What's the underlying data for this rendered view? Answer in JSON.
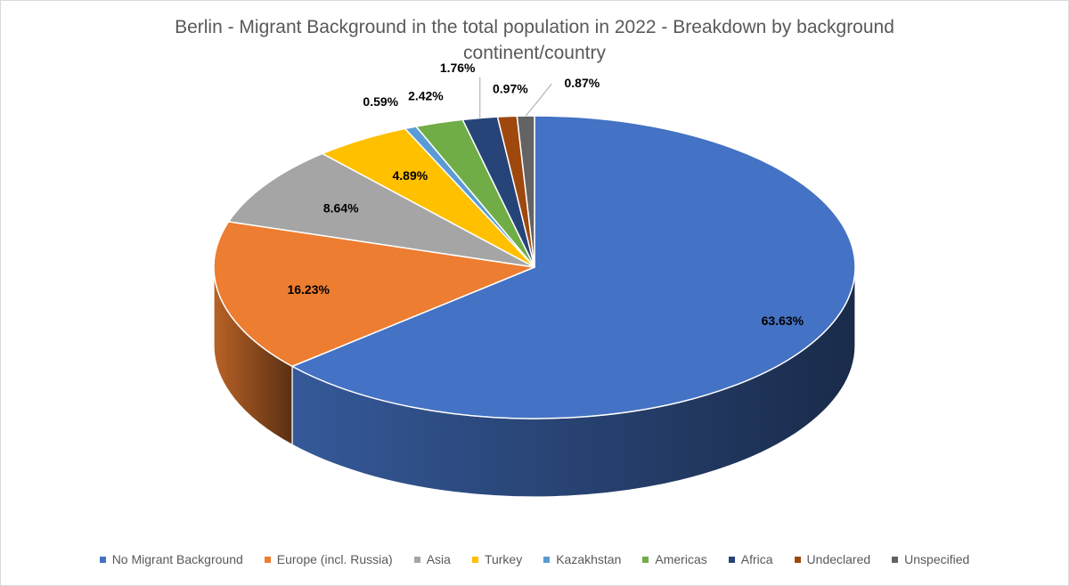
{
  "chart_data": {
    "type": "pie",
    "title": "Berlin - Migrant Background in the total population in 2022 - Breakdown by background continent/country",
    "legend_position": "bottom",
    "slices": [
      {
        "name": "No Migrant Background",
        "value": 63.63,
        "label": "63.63%",
        "color": "#4472C4"
      },
      {
        "name": "Europe (incl. Russia)",
        "value": 16.23,
        "label": "16.23%",
        "color": "#ED7D31"
      },
      {
        "name": "Asia",
        "value": 8.64,
        "label": "8.64%",
        "color": "#A5A5A5"
      },
      {
        "name": "Turkey",
        "value": 4.89,
        "label": "4.89%",
        "color": "#FFC000"
      },
      {
        "name": "Kazakhstan",
        "value": 0.59,
        "label": "0.59%",
        "color": "#5B9BD5"
      },
      {
        "name": "Americas",
        "value": 2.42,
        "label": "2.42%",
        "color": "#70AD47"
      },
      {
        "name": "Africa",
        "value": 1.76,
        "label": "1.76%",
        "color": "#264478"
      },
      {
        "name": "Undeclared",
        "value": 0.97,
        "label": "0.97%",
        "color": "#9E480E"
      },
      {
        "name": "Unspecified",
        "value": 0.87,
        "label": "0.87%",
        "color": "#636363"
      }
    ]
  }
}
